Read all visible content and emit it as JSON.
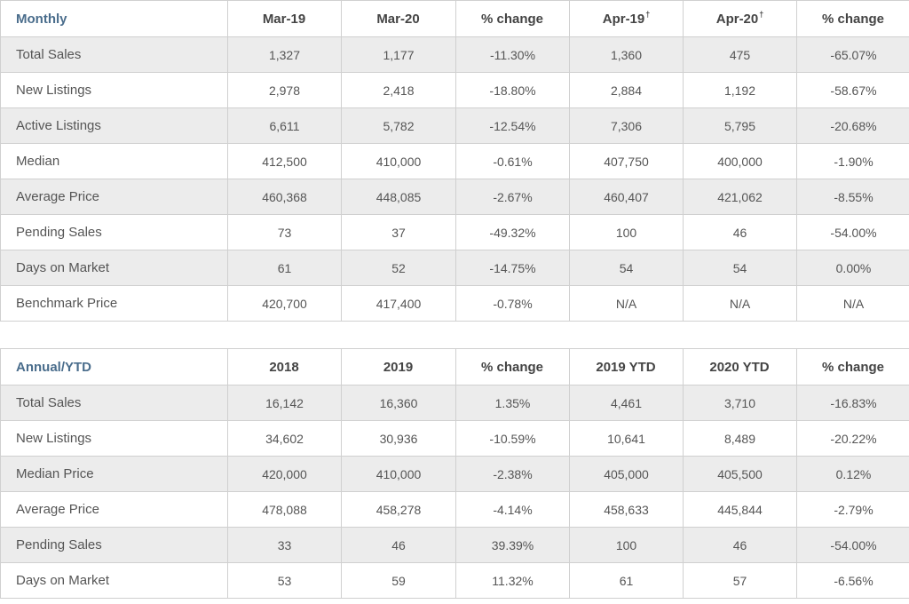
{
  "monthly": {
    "title": "Monthly",
    "columns": [
      {
        "label": "Mar-19",
        "note": ""
      },
      {
        "label": "Mar-20",
        "note": ""
      },
      {
        "label": "% change",
        "note": ""
      },
      {
        "label": "Apr-19",
        "note": "†"
      },
      {
        "label": "Apr-20",
        "note": "†"
      },
      {
        "label": "% change",
        "note": ""
      }
    ],
    "rows": [
      {
        "label": "Total Sales",
        "cells": [
          "1,327",
          "1,177",
          "-11.30%",
          "1,360",
          "475",
          "-65.07%"
        ]
      },
      {
        "label": "New Listings",
        "cells": [
          "2,978",
          "2,418",
          "-18.80%",
          "2,884",
          "1,192",
          "-58.67%"
        ]
      },
      {
        "label": "Active Listings",
        "cells": [
          "6,611",
          "5,782",
          "-12.54%",
          "7,306",
          "5,795",
          "-20.68%"
        ]
      },
      {
        "label": "Median",
        "cells": [
          "412,500",
          "410,000",
          "-0.61%",
          "407,750",
          "400,000",
          "-1.90%"
        ]
      },
      {
        "label": "Average Price",
        "cells": [
          "460,368",
          "448,085",
          "-2.67%",
          "460,407",
          "421,062",
          "-8.55%"
        ]
      },
      {
        "label": "Pending Sales",
        "cells": [
          "73",
          "37",
          "-49.32%",
          "100",
          "46",
          "-54.00%"
        ]
      },
      {
        "label": "Days on Market",
        "cells": [
          "61",
          "52",
          "-14.75%",
          "54",
          "54",
          "0.00%"
        ]
      },
      {
        "label": "Benchmark Price",
        "cells": [
          "420,700",
          "417,400",
          "-0.78%",
          "N/A",
          "N/A",
          "N/A"
        ]
      }
    ]
  },
  "annual": {
    "title": "Annual/YTD",
    "columns": [
      {
        "label": "2018",
        "note": ""
      },
      {
        "label": "2019",
        "note": ""
      },
      {
        "label": "% change",
        "note": ""
      },
      {
        "label": "2019 YTD",
        "note": ""
      },
      {
        "label": "2020 YTD",
        "note": ""
      },
      {
        "label": "% change",
        "note": ""
      }
    ],
    "rows": [
      {
        "label": "Total Sales",
        "cells": [
          "16,142",
          "16,360",
          "1.35%",
          "4,461",
          "3,710",
          "-16.83%"
        ]
      },
      {
        "label": "New Listings",
        "cells": [
          "34,602",
          "30,936",
          "-10.59%",
          "10,641",
          "8,489",
          "-20.22%"
        ]
      },
      {
        "label": "Median Price",
        "cells": [
          "420,000",
          "410,000",
          "-2.38%",
          "405,000",
          "405,500",
          "0.12%"
        ]
      },
      {
        "label": "Average Price",
        "cells": [
          "478,088",
          "458,278",
          "-4.14%",
          "458,633",
          "445,844",
          "-2.79%"
        ]
      },
      {
        "label": "Pending Sales",
        "cells": [
          "33",
          "46",
          "39.39%",
          "100",
          "46",
          "-54.00%"
        ]
      },
      {
        "label": "Days on Market",
        "cells": [
          "53",
          "59",
          "11.32%",
          "61",
          "57",
          "-6.56%"
        ]
      }
    ]
  },
  "colors": {
    "section_title": "#4a6d8c",
    "row_shaded": "#ececec",
    "row_plain": "#ffffff",
    "grid_line": "#d0d0d0",
    "text": "#555555"
  }
}
